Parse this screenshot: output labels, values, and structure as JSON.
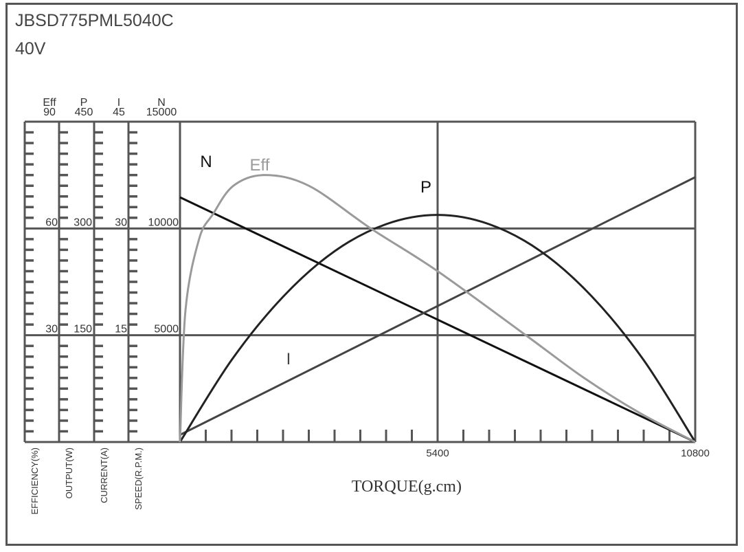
{
  "header": {
    "model": "JBSD775PML5040C",
    "voltage": "40V"
  },
  "chart_data": {
    "type": "line",
    "title": "JBSD775PML5040C 40V",
    "xlabel": "TORQUE(g.cm)",
    "xlim": [
      0,
      10800
    ],
    "xticks": [
      "5400",
      "10800"
    ],
    "grid": true,
    "y_axes": [
      {
        "key": "Eff",
        "header": "Eff",
        "label": "EFFICIENCY(%)",
        "max": "90",
        "ticks": [
          "60",
          "30"
        ],
        "range": [
          0,
          90
        ]
      },
      {
        "key": "P",
        "header": "P",
        "label": "OUTPUT(W)",
        "max": "450",
        "ticks": [
          "300",
          "150"
        ],
        "range": [
          0,
          450
        ]
      },
      {
        "key": "I",
        "header": "I",
        "label": "CURRENT(A)",
        "max": "45",
        "ticks": [
          "30",
          "15"
        ],
        "range": [
          0,
          45
        ]
      },
      {
        "key": "N",
        "header": "N",
        "label": "SPEED(R.P.M.)",
        "max": "15000",
        "ticks": [
          "10000",
          "5000"
        ],
        "range": [
          0,
          15000
        ]
      }
    ],
    "series": [
      {
        "name": "N",
        "axis": "N",
        "color": "#111111",
        "x": [
          0,
          10800
        ],
        "y": [
          11460,
          0
        ]
      },
      {
        "name": "I",
        "axis": "I",
        "color": "#444444",
        "x": [
          0,
          10800
        ],
        "y": [
          1.0,
          37.2
        ]
      },
      {
        "name": "P",
        "axis": "P",
        "color": "#222222",
        "x": [
          0,
          1080,
          2160,
          3240,
          4320,
          5400,
          6480,
          7560,
          8640,
          9720,
          10800
        ],
        "y": [
          0,
          115,
          204,
          268,
          306,
          319,
          306,
          268,
          204,
          115,
          0
        ]
      },
      {
        "name": "Eff",
        "axis": "Eff",
        "color": "#9a9a9a",
        "x": [
          0,
          115,
          400,
          690,
          1120,
          1770,
          2700,
          4000,
          5400,
          7300,
          8470,
          9620,
          10800
        ],
        "y": [
          0,
          37,
          57,
          64,
          72,
          75,
          72,
          60,
          48,
          29.5,
          18,
          8.3,
          0
        ]
      }
    ]
  }
}
